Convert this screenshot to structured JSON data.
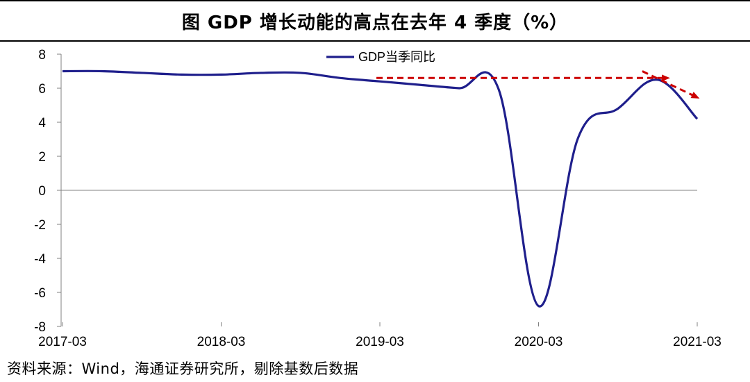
{
  "title": "图  GDP 增长动能的高点在去年 4 季度（%）",
  "source": "资料来源：Wind，海通证券研究所，剔除基数后数据",
  "colors": {
    "series": "#1f1f8c",
    "annotation": "#cc0000",
    "axis": "#808080"
  },
  "chart_data": {
    "type": "line",
    "title": "GDP 增长动能的高点在去年 4 季度（%）",
    "xlabel": "",
    "ylabel": "",
    "ylim": [
      -8,
      8
    ],
    "yticks": [
      -8,
      -6,
      -4,
      -2,
      0,
      2,
      4,
      6,
      8
    ],
    "x_tick_labels": [
      "2017-03",
      "2018-03",
      "2019-03",
      "2020-03",
      "2021-03"
    ],
    "legend": [
      "GDP当季同比"
    ],
    "legend_position": "top-center",
    "x": [
      "2017-03",
      "2017-06",
      "2017-09",
      "2017-12",
      "2018-03",
      "2018-06",
      "2018-09",
      "2018-12",
      "2019-03",
      "2019-06",
      "2019-09",
      "2019-12",
      "2020-03",
      "2020-06",
      "2020-09",
      "2020-12",
      "2021-03"
    ],
    "series": [
      {
        "name": "GDP当季同比",
        "values": [
          7.0,
          7.0,
          6.9,
          6.8,
          6.8,
          6.9,
          6.9,
          6.6,
          6.4,
          6.2,
          6.0,
          5.9,
          -6.8,
          3.1,
          4.8,
          6.5,
          4.2
        ]
      }
    ],
    "annotations": [
      {
        "type": "dashed-arrow",
        "from": [
          "2019-03",
          6.6
        ],
        "to": [
          "2020-12",
          6.6
        ]
      },
      {
        "type": "dashed-arrow",
        "from": [
          "2020-12",
          7.0
        ],
        "to": [
          "2021-03",
          5.5
        ]
      }
    ]
  }
}
